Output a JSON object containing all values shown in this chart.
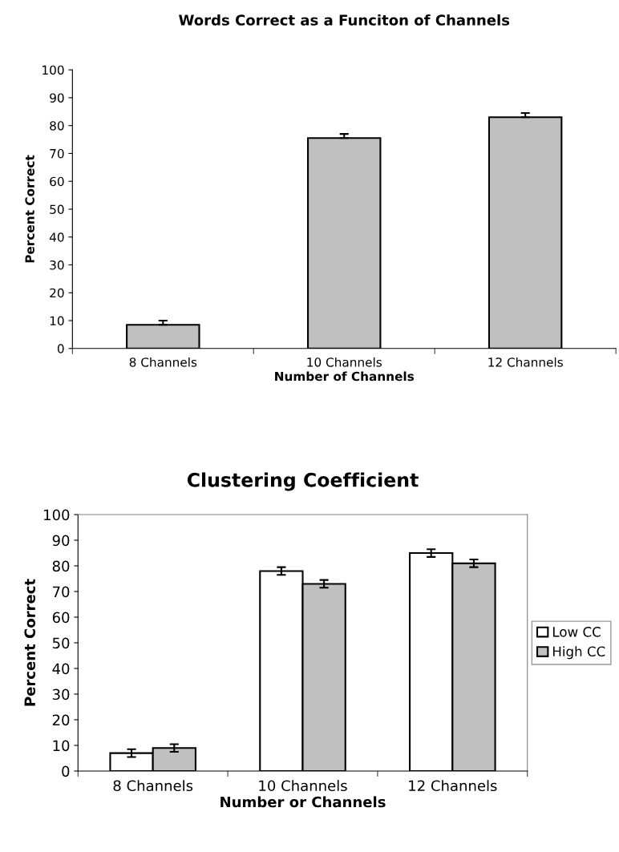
{
  "chart_data": [
    {
      "type": "bar",
      "title": "Words Correct as a Funciton of Channels",
      "xlabel": "Number of Channels",
      "ylabel": "Percent Correct",
      "categories": [
        "8 Channels",
        "10 Channels",
        "12 Channels"
      ],
      "values": [
        8.5,
        75.5,
        83
      ],
      "errors": [
        [
          8.5,
          10
        ],
        [
          75.5,
          77
        ],
        [
          83,
          84.5
        ]
      ],
      "color": "#c0c0c0",
      "ylim": [
        0,
        100
      ],
      "yticks": [
        0,
        10,
        20,
        30,
        40,
        50,
        60,
        70,
        80,
        90,
        100
      ],
      "grid": false,
      "legend": false
    },
    {
      "type": "bar",
      "title": "Clustering Coefficient",
      "xlabel": "Number or Channels",
      "ylabel": "Percent Correct",
      "categories": [
        "8 Channels",
        "10 Channels",
        "12 Channels"
      ],
      "series": [
        {
          "name": "Low CC",
          "color": "#ffffff",
          "values": [
            7,
            78,
            85
          ],
          "errors": [
            1.5,
            1.5,
            1.5
          ]
        },
        {
          "name": "High CC",
          "color": "#c0c0c0",
          "values": [
            9,
            73,
            81
          ],
          "errors": [
            1.5,
            1.5,
            1.5
          ]
        }
      ],
      "ylim": [
        0,
        100
      ],
      "yticks": [
        0,
        10,
        20,
        30,
        40,
        50,
        60,
        70,
        80,
        90,
        100
      ],
      "grid": false,
      "legend": "right"
    }
  ]
}
